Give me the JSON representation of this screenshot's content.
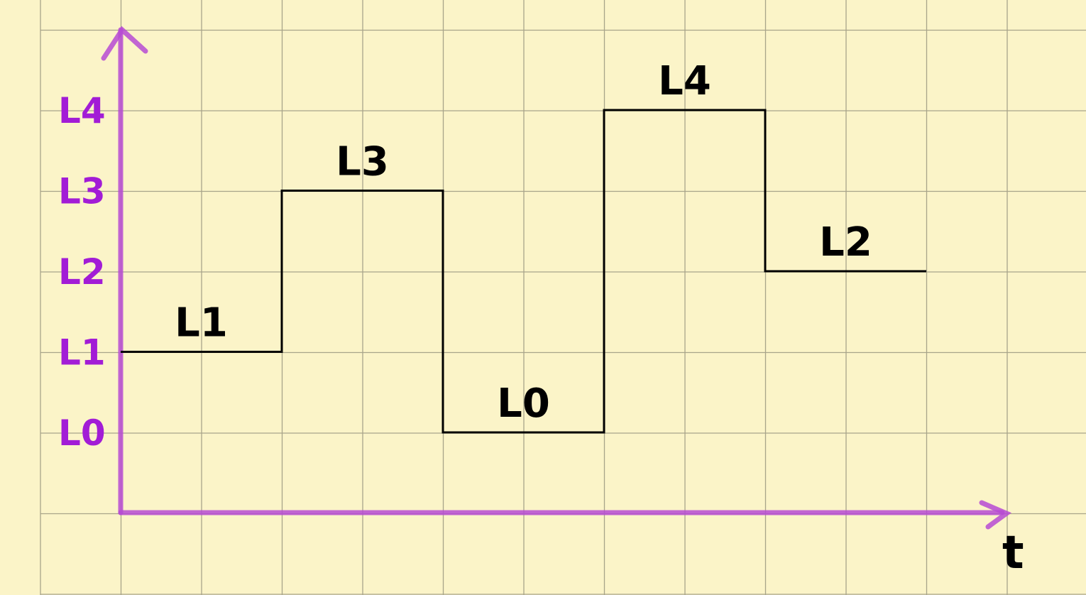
{
  "chart_data": {
    "type": "line",
    "step": true,
    "xlabel": "t",
    "ylabel": "",
    "y_levels": [
      "L0",
      "L1",
      "L2",
      "L3",
      "L4"
    ],
    "segments": [
      {
        "label": "L1",
        "level": 1,
        "t_start": 0,
        "t_end": 2
      },
      {
        "label": "L3",
        "level": 3,
        "t_start": 2,
        "t_end": 4
      },
      {
        "label": "L0",
        "level": 0,
        "t_start": 4,
        "t_end": 6
      },
      {
        "label": "L4",
        "level": 4,
        "t_start": 6,
        "t_end": 8
      },
      {
        "label": "L2",
        "level": 2,
        "t_start": 8,
        "t_end": 10
      }
    ],
    "xlim": [
      0,
      10
    ],
    "grid": true,
    "colors": {
      "axes": "#b64ad4",
      "tick_labels": "#a21cd6",
      "signal": "#000000",
      "background": "#fbf4c8",
      "grid": "#a8a48a"
    }
  }
}
